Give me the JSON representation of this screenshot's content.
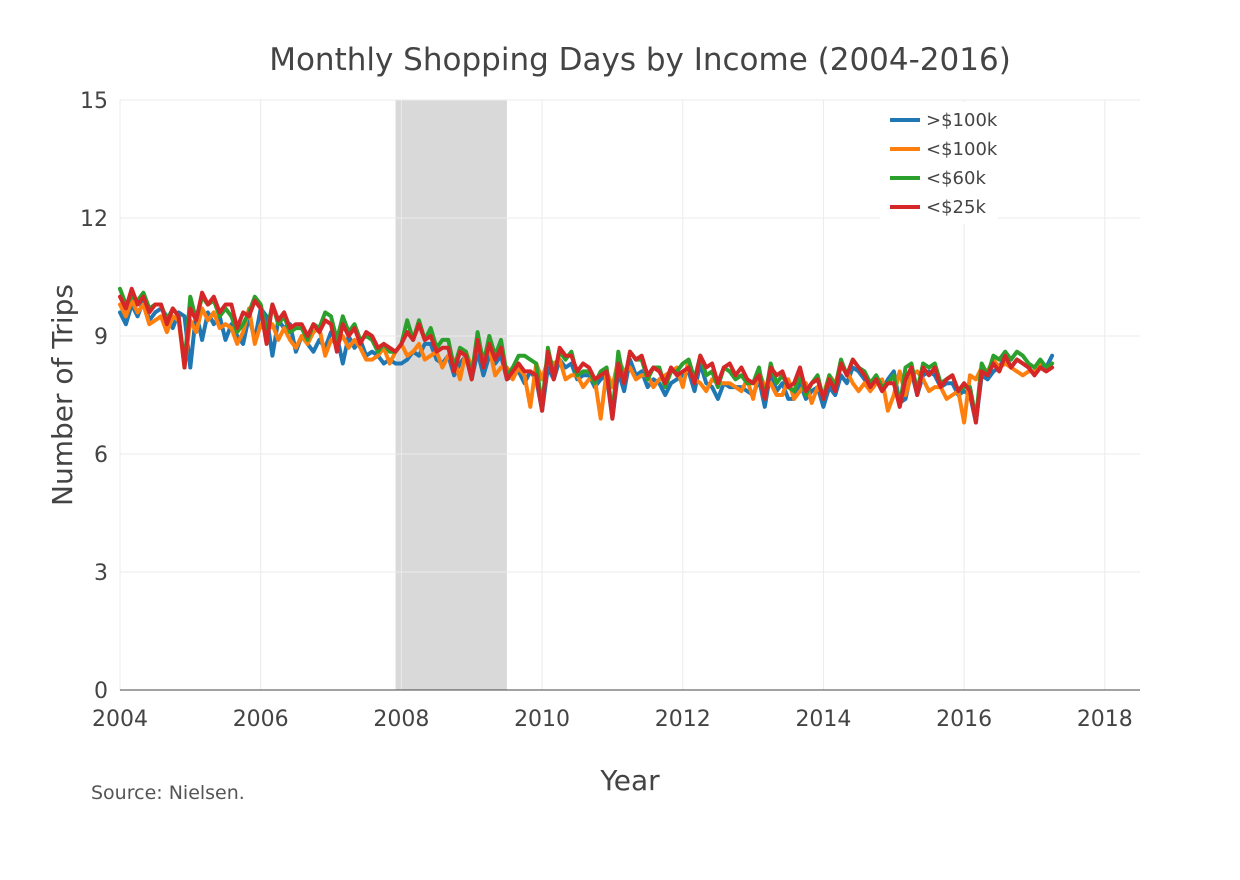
{
  "chart_data": {
    "type": "line",
    "title": "Monthly Shopping Days by Income (2004-2016)",
    "xlabel": "Year",
    "ylabel": "Number of Trips",
    "xlim": [
      2004,
      2018.5
    ],
    "ylim": [
      0,
      15
    ],
    "xticks": [
      2004,
      2006,
      2008,
      2010,
      2012,
      2014,
      2016,
      2018
    ],
    "yticks": [
      0,
      3,
      6,
      9,
      12,
      15
    ],
    "grid": true,
    "legend_position": "top-right",
    "source_note": "Source: Nielsen.",
    "shaded_region": {
      "x0": 2007.917,
      "x1": 2009.5,
      "color": "#d9d9d9",
      "label": ""
    },
    "x_start": 2004.0,
    "x_step_months": 1,
    "series": [
      {
        "name": ">$100k",
        "color": "#1f77b4",
        "values": [
          9.6,
          9.3,
          9.8,
          9.5,
          9.9,
          9.4,
          9.6,
          9.7,
          9.5,
          9.2,
          9.6,
          9.5,
          8.2,
          9.6,
          8.9,
          9.6,
          9.3,
          9.5,
          8.9,
          9.3,
          9.0,
          8.8,
          9.5,
          8.9,
          9.7,
          9.5,
          8.5,
          9.4,
          9.2,
          9.3,
          8.6,
          9.0,
          8.8,
          8.6,
          8.9,
          8.7,
          9.1,
          9.0,
          8.3,
          9.0,
          8.7,
          8.9,
          8.5,
          8.6,
          8.5,
          8.3,
          8.4,
          8.3,
          8.3,
          8.4,
          8.6,
          8.5,
          8.8,
          8.8,
          8.4,
          8.3,
          8.5,
          8.0,
          8.3,
          8.5,
          7.9,
          8.6,
          8.0,
          8.5,
          8.3,
          8.5,
          7.9,
          8.0,
          8.1,
          7.8,
          8.1,
          7.9,
          7.1,
          8.2,
          7.9,
          8.4,
          8.2,
          8.3,
          7.9,
          8.0,
          8.0,
          7.7,
          7.9,
          8.0,
          6.9,
          8.1,
          7.6,
          8.4,
          8.0,
          8.1,
          7.7,
          7.9,
          7.8,
          7.5,
          7.8,
          7.9,
          8.0,
          8.1,
          7.6,
          8.3,
          7.8,
          7.7,
          7.4,
          7.8,
          7.7,
          7.7,
          7.7,
          7.6,
          7.5,
          7.9,
          7.2,
          8.1,
          7.6,
          7.8,
          7.4,
          7.4,
          7.8,
          7.4,
          7.6,
          7.7,
          7.2,
          7.7,
          7.5,
          8.0,
          7.8,
          8.2,
          8.1,
          7.9,
          7.7,
          7.9,
          7.6,
          7.9,
          8.1,
          7.3,
          7.4,
          8.1,
          7.5,
          8.0,
          8.1,
          8.0,
          7.7,
          7.8,
          7.8,
          7.5,
          7.6,
          7.5,
          6.8,
          8.0,
          7.9,
          8.1,
          8.2,
          8.5,
          8.2,
          8.4,
          8.3,
          8.2,
          8.0,
          8.3,
          8.2,
          8.5
        ]
      },
      {
        "name": "<$100k",
        "color": "#ff7f0e",
        "values": [
          9.8,
          9.5,
          9.9,
          9.6,
          9.8,
          9.3,
          9.4,
          9.5,
          9.1,
          9.5,
          9.4,
          8.2,
          9.4,
          9.1,
          9.7,
          9.4,
          9.6,
          9.2,
          9.3,
          9.2,
          8.8,
          9.1,
          9.7,
          8.8,
          9.3,
          9.1,
          9.3,
          8.9,
          9.2,
          8.9,
          8.7,
          9.0,
          8.8,
          9.1,
          9.2,
          8.5,
          8.9,
          8.8,
          9.0,
          8.7,
          8.9,
          8.7,
          8.4,
          8.4,
          8.5,
          8.7,
          8.3,
          8.6,
          8.8,
          8.5,
          8.6,
          8.8,
          8.4,
          8.5,
          8.6,
          8.2,
          8.5,
          8.4,
          7.9,
          8.6,
          8.2,
          8.7,
          8.5,
          8.7,
          8.0,
          8.2,
          8.2,
          7.9,
          8.2,
          8.0,
          7.2,
          8.3,
          7.9,
          8.4,
          8.3,
          8.4,
          7.9,
          8.0,
          8.0,
          7.7,
          7.9,
          7.9,
          6.9,
          8.1,
          7.7,
          8.4,
          8.1,
          8.2,
          7.9,
          8.0,
          8.0,
          7.7,
          7.9,
          8.0,
          8.1,
          8.2,
          7.7,
          8.4,
          7.9,
          7.8,
          7.6,
          7.9,
          7.8,
          7.8,
          7.8,
          7.7,
          7.6,
          7.9,
          7.4,
          8.1,
          7.7,
          7.8,
          7.5,
          7.5,
          7.9,
          7.4,
          7.6,
          7.8,
          7.3,
          7.7,
          7.5,
          8.0,
          7.8,
          8.2,
          8.1,
          7.8,
          7.6,
          7.8,
          7.6,
          7.8,
          7.9,
          7.1,
          7.5,
          8.1,
          7.5,
          8.0,
          8.1,
          7.9,
          7.6,
          7.7,
          7.7,
          7.4,
          7.5,
          7.6,
          6.8,
          8.0,
          7.9,
          8.2,
          8.1,
          8.4,
          8.2,
          8.3,
          8.2,
          8.1,
          8.0,
          8.1,
          8.1,
          8.3
        ]
      },
      {
        "name": "<$60k",
        "color": "#2ca02c",
        "values": [
          10.2,
          9.8,
          10.0,
          9.9,
          10.1,
          9.7,
          9.8,
          9.8,
          9.4,
          9.7,
          9.5,
          8.3,
          10.0,
          9.4,
          10.0,
          9.8,
          9.9,
          9.5,
          9.7,
          9.5,
          9.1,
          9.3,
          9.6,
          10.0,
          9.8,
          9.1,
          9.8,
          9.3,
          9.5,
          9.1,
          9.2,
          9.2,
          8.9,
          9.3,
          9.2,
          9.6,
          9.5,
          8.9,
          9.5,
          9.1,
          9.3,
          8.9,
          9.0,
          8.9,
          8.6,
          8.8,
          8.6,
          8.6,
          8.8,
          9.4,
          8.9,
          9.4,
          8.9,
          9.2,
          8.7,
          8.9,
          8.9,
          8.2,
          8.7,
          8.6,
          8.0,
          9.1,
          8.3,
          9.0,
          8.5,
          8.9,
          8.0,
          8.2,
          8.5,
          8.5,
          8.4,
          8.3,
          7.2,
          8.7,
          8.0,
          8.6,
          8.4,
          8.6,
          8.0,
          8.1,
          8.1,
          7.8,
          8.1,
          8.2,
          7.0,
          8.6,
          7.8,
          8.6,
          8.4,
          8.4,
          7.9,
          8.2,
          8.2,
          7.7,
          8.1,
          8.1,
          8.3,
          8.4,
          7.9,
          8.5,
          8.0,
          8.1,
          7.7,
          8.2,
          8.1,
          7.9,
          8.0,
          7.8,
          7.8,
          8.2,
          7.4,
          8.3,
          7.8,
          8.0,
          7.7,
          7.6,
          8.0,
          7.5,
          7.8,
          8.0,
          7.4,
          8.0,
          7.7,
          8.4,
          8.0,
          8.4,
          8.2,
          8.1,
          7.8,
          8.0,
          7.7,
          7.8,
          8.0,
          7.2,
          8.2,
          8.3,
          7.6,
          8.3,
          8.2,
          8.3,
          7.8,
          7.9,
          8.0,
          7.6,
          7.7,
          7.7,
          6.9,
          8.3,
          8.0,
          8.5,
          8.4,
          8.6,
          8.4,
          8.6,
          8.5,
          8.3,
          8.2,
          8.4,
          8.2,
          8.3
        ]
      },
      {
        "name": "<$25k",
        "color": "#d62728",
        "values": [
          10.0,
          9.7,
          10.2,
          9.8,
          10.0,
          9.6,
          9.8,
          9.8,
          9.3,
          9.7,
          9.5,
          8.2,
          9.7,
          9.4,
          10.1,
          9.8,
          10.0,
          9.6,
          9.8,
          9.8,
          9.2,
          9.6,
          9.5,
          9.9,
          9.7,
          8.8,
          9.8,
          9.4,
          9.6,
          9.2,
          9.3,
          9.3,
          9.0,
          9.3,
          9.1,
          9.4,
          9.3,
          8.6,
          9.3,
          9.0,
          9.2,
          8.8,
          9.1,
          9.0,
          8.7,
          8.8,
          8.7,
          8.6,
          8.8,
          9.1,
          8.9,
          9.3,
          8.9,
          9.0,
          8.6,
          8.7,
          8.7,
          8.1,
          8.6,
          8.5,
          7.9,
          8.9,
          8.2,
          8.8,
          8.4,
          8.7,
          7.9,
          8.1,
          8.3,
          8.1,
          8.1,
          8.0,
          7.1,
          8.6,
          7.9,
          8.7,
          8.5,
          8.5,
          8.1,
          8.3,
          8.2,
          7.9,
          8.0,
          8.1,
          6.9,
          8.3,
          7.8,
          8.6,
          8.4,
          8.5,
          8.0,
          8.2,
          8.1,
          7.8,
          8.2,
          8.0,
          8.1,
          8.2,
          7.8,
          8.5,
          8.2,
          8.3,
          7.8,
          8.2,
          8.3,
          8.0,
          8.2,
          7.9,
          7.8,
          8.0,
          7.4,
          8.2,
          8.0,
          8.1,
          7.7,
          7.8,
          8.2,
          7.6,
          7.8,
          7.9,
          7.4,
          7.9,
          7.6,
          8.3,
          8.0,
          8.4,
          8.2,
          8.0,
          7.7,
          7.9,
          7.6,
          7.8,
          7.8,
          7.2,
          7.9,
          8.2,
          7.5,
          8.2,
          8.0,
          8.2,
          7.7,
          7.9,
          8.0,
          7.6,
          7.8,
          7.6,
          6.8,
          8.1,
          8.0,
          8.3,
          8.1,
          8.5,
          8.2,
          8.4,
          8.3,
          8.2,
          8.0,
          8.2,
          8.1,
          8.2
        ]
      }
    ]
  }
}
